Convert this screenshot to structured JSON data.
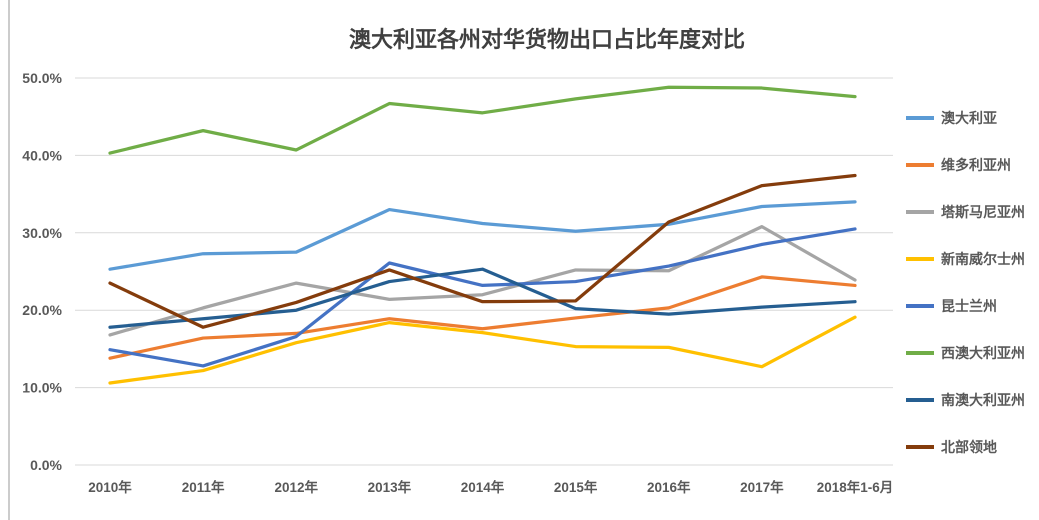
{
  "chart_data": {
    "type": "line",
    "title": "澳大利亚各州对华货物出口占比年度对比",
    "categories": [
      "2010年",
      "2011年",
      "2012年",
      "2013年",
      "2014年",
      "2015年",
      "2016年",
      "2017年",
      "2018年1-6月"
    ],
    "y_ticks": [
      "0.0%",
      "10.0%",
      "20.0%",
      "30.0%",
      "40.0%",
      "50.0%"
    ],
    "ylim": [
      0,
      50
    ],
    "y_step": 10,
    "grid": true,
    "legend_position": "right",
    "series": [
      {
        "name": "澳大利亚",
        "color": "#5B9BD5",
        "values": [
          25.3,
          27.3,
          27.5,
          33.0,
          31.2,
          30.2,
          31.1,
          33.4,
          34.0
        ]
      },
      {
        "name": "维多利亚州",
        "color": "#ED7D31",
        "values": [
          13.8,
          16.4,
          17.0,
          18.9,
          17.6,
          19.0,
          20.3,
          24.3,
          23.2
        ]
      },
      {
        "name": "塔斯马尼亚州",
        "color": "#A5A5A5",
        "values": [
          16.8,
          20.3,
          23.5,
          21.4,
          22.0,
          25.2,
          25.1,
          30.8,
          23.9
        ]
      },
      {
        "name": "新南威尔士州",
        "color": "#FFC000",
        "values": [
          10.6,
          12.2,
          15.8,
          18.4,
          17.1,
          15.3,
          15.2,
          12.7,
          19.1
        ]
      },
      {
        "name": "昆士兰州",
        "color": "#4472C4",
        "values": [
          14.9,
          12.8,
          16.6,
          26.1,
          23.2,
          23.7,
          25.7,
          28.5,
          30.5
        ]
      },
      {
        "name": "西澳大利亚州",
        "color": "#70AD47",
        "values": [
          40.3,
          43.2,
          40.7,
          46.7,
          45.5,
          47.3,
          48.8,
          48.7,
          47.6
        ]
      },
      {
        "name": "南澳大利亚州",
        "color": "#255E91",
        "values": [
          17.8,
          18.9,
          20.0,
          23.7,
          25.3,
          20.2,
          19.5,
          20.4,
          21.1
        ]
      },
      {
        "name": "北部领地",
        "color": "#843C0C",
        "values": [
          23.5,
          17.8,
          21.0,
          25.2,
          21.1,
          21.2,
          31.4,
          36.1,
          37.4
        ]
      }
    ],
    "style_colors": {
      "grid": "#D9D9D9",
      "axis_text": "#595959",
      "title_text": "#404040",
      "window_edge": "#ABABAB"
    }
  }
}
